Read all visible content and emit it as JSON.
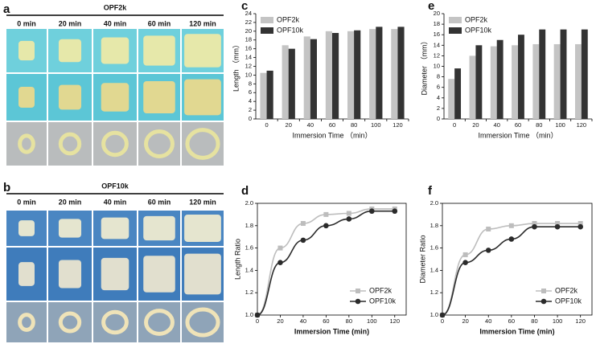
{
  "photo_panels": [
    {
      "panel_label": "a",
      "title": "OPF2k",
      "columns": [
        "0 min",
        "20 min",
        "40 min",
        "60 min",
        "120 min"
      ]
    },
    {
      "panel_label": "b",
      "title": "OPF10k",
      "columns": [
        "0 min",
        "20 min",
        "40 min",
        "60 min",
        "120 min"
      ]
    }
  ],
  "chart_data": [
    {
      "panel_label": "c",
      "type": "bar",
      "ylabel": "Length （mm）",
      "xlabel": "Immersion Time （min）",
      "categories": [
        "0",
        "20",
        "40",
        "60",
        "80",
        "100",
        "120"
      ],
      "series": [
        {
          "name": "OPF2k",
          "color": "#c4c4c4",
          "values": [
            10.5,
            16.8,
            18.8,
            20,
            20,
            20.5,
            20.5
          ]
        },
        {
          "name": "OPF10k",
          "color": "#333333",
          "values": [
            11,
            16,
            18.2,
            19.6,
            20.2,
            21,
            21
          ]
        }
      ],
      "ylim": [
        0,
        24
      ],
      "yticks": [
        0,
        2,
        4,
        6,
        8,
        10,
        12,
        14,
        16,
        18,
        20,
        22,
        24
      ],
      "legend": "upper left"
    },
    {
      "panel_label": "e",
      "type": "bar",
      "ylabel": "Diameter （mm）",
      "xlabel": "Immersion Time （min）",
      "categories": [
        "0",
        "20",
        "40",
        "60",
        "80",
        "100",
        "120"
      ],
      "series": [
        {
          "name": "OPF2k",
          "color": "#c4c4c4",
          "values": [
            7.6,
            12,
            13.8,
            14,
            14.2,
            14.2,
            14.2
          ]
        },
        {
          "name": "OPF10k",
          "color": "#333333",
          "values": [
            9.6,
            14,
            15,
            16,
            17,
            17,
            17
          ]
        }
      ],
      "ylim": [
        0,
        20
      ],
      "yticks": [
        0,
        2,
        4,
        6,
        8,
        10,
        12,
        14,
        16,
        18,
        20
      ],
      "legend": "upper left"
    },
    {
      "panel_label": "d",
      "type": "line",
      "ylabel": "Length Ratio",
      "xlabel": "Immersion Time (min)",
      "x": [
        0,
        20,
        40,
        60,
        80,
        100,
        120
      ],
      "series": [
        {
          "name": "OPF2k",
          "color": "#bdbdbd",
          "marker": "square",
          "values": [
            1.0,
            1.6,
            1.82,
            1.9,
            1.91,
            1.95,
            1.95
          ]
        },
        {
          "name": "OPF10k",
          "color": "#2b2b2b",
          "marker": "circle",
          "values": [
            1.0,
            1.47,
            1.67,
            1.8,
            1.86,
            1.93,
            1.93
          ]
        }
      ],
      "xlim": [
        0,
        130
      ],
      "xticks": [
        0,
        20,
        40,
        60,
        80,
        100,
        120
      ],
      "ylim": [
        1.0,
        2.0
      ],
      "yticks": [
        {
          "value": 1.0,
          "label": "1.0"
        },
        1.2,
        1.4,
        1.6,
        1.8,
        {
          "value": 2.0,
          "label": "2.0"
        }
      ],
      "legend": "lower right"
    },
    {
      "panel_label": "f",
      "type": "line",
      "ylabel": "Diameter Ratio",
      "xlabel": "Immersion Time (min)",
      "x": [
        0,
        20,
        40,
        60,
        80,
        100,
        120
      ],
      "series": [
        {
          "name": "OPF2k",
          "color": "#bdbdbd",
          "marker": "square",
          "values": [
            1.0,
            1.54,
            1.77,
            1.8,
            1.82,
            1.82,
            1.82
          ]
        },
        {
          "name": "OPF10k",
          "color": "#2b2b2b",
          "marker": "circle",
          "values": [
            1.0,
            1.47,
            1.58,
            1.68,
            1.79,
            1.79,
            1.79
          ]
        }
      ],
      "xlim": [
        0,
        130
      ],
      "xticks": [
        0,
        20,
        40,
        60,
        80,
        100,
        120
      ],
      "ylim": [
        1.0,
        2.0
      ],
      "yticks": [
        {
          "value": 1.0,
          "label": "1.0"
        },
        1.2,
        1.4,
        1.6,
        1.8,
        {
          "value": 2.0,
          "label": "2.0"
        }
      ],
      "legend": "lower right"
    }
  ]
}
